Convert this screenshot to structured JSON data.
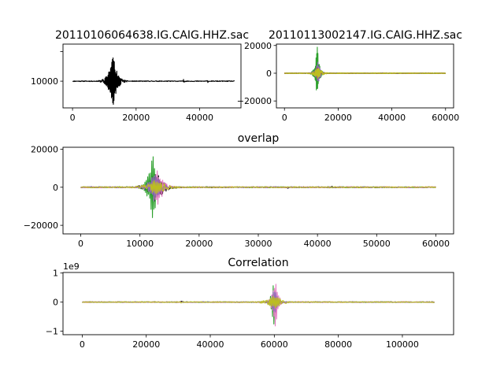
{
  "figure": {
    "background": "#ffffff"
  },
  "chart_data": [
    {
      "type": "line",
      "title": "20110106064638.IG.CAIG.HHZ.sac",
      "xlim": [
        -3000,
        53000
      ],
      "ylim": [
        -9000,
        12500
      ],
      "xticks": [
        0,
        20000,
        40000
      ],
      "yticks": [
        -10000,
        0,
        10000
      ],
      "yticks_shown": [
        0,
        10000
      ],
      "yticklabels": [
        "0",
        "10000"
      ],
      "offset_text": "",
      "grid": false,
      "series": [
        {
          "color": "#000000",
          "x_end": 51000,
          "events": [
            {
              "center": 12700,
              "amplitude": 9500,
              "width": 1200
            },
            {
              "center": 35000,
              "amplitude": 900,
              "width": 250
            },
            {
              "center": 42500,
              "amplitude": 700,
              "width": 200
            }
          ]
        }
      ]
    },
    {
      "type": "line",
      "title": "20110113002147.IG.CAIG.HHZ.sac",
      "xlim": [
        -3000,
        63000
      ],
      "ylim": [
        -25000,
        21000
      ],
      "xticks": [
        0,
        20000,
        40000,
        60000
      ],
      "yticks": [
        -20000,
        0,
        20000
      ],
      "yticklabels": [
        "−20000",
        "0",
        "20000"
      ],
      "offset_text": "",
      "grid": false,
      "series": [
        {
          "color": "#ff7f0e",
          "x_end": 60000,
          "events": [
            {
              "center": 12200,
              "amplitude": 6000,
              "width": 900
            }
          ]
        },
        {
          "color": "#2ca02c",
          "x_end": 60000,
          "events": [
            {
              "center": 12200,
              "amplitude": 21000,
              "width": 700
            }
          ]
        },
        {
          "color": "#9467bd",
          "x_end": 60000,
          "events": [
            {
              "center": 12400,
              "amplitude": 9000,
              "width": 900
            }
          ]
        },
        {
          "color": "#8c564b",
          "x_end": 60000,
          "events": [
            {
              "center": 12300,
              "amplitude": 5000,
              "width": 800
            }
          ]
        },
        {
          "color": "#bcbd22",
          "x_end": 60000,
          "events": [
            {
              "center": 12500,
              "amplitude": 4000,
              "width": 1600
            },
            {
              "center": 42000,
              "amplitude": 700,
              "width": 250
            }
          ]
        }
      ]
    },
    {
      "type": "line",
      "title": "overlap",
      "xlim": [
        -3000,
        63000
      ],
      "ylim": [
        -24500,
        21000
      ],
      "xticks": [
        0,
        10000,
        20000,
        30000,
        40000,
        50000,
        60000
      ],
      "yticks": [
        -20000,
        0,
        20000
      ],
      "yticklabels": [
        "−20000",
        "0",
        "20000"
      ],
      "offset_text": "",
      "grid": false,
      "series": [
        {
          "color": "#000000",
          "x_end": 51000,
          "events": [
            {
              "center": 12700,
              "amplitude": 9000,
              "width": 1200
            },
            {
              "center": 35000,
              "amplitude": 900,
              "width": 250
            },
            {
              "center": 42500,
              "amplitude": 700,
              "width": 200
            }
          ]
        },
        {
          "color": "#ff7f0e",
          "x_end": 60000,
          "events": [
            {
              "center": 12200,
              "amplitude": 6000,
              "width": 900
            }
          ]
        },
        {
          "color": "#2ca02c",
          "x_end": 60000,
          "events": [
            {
              "center": 12200,
              "amplitude": 20000,
              "width": 700
            }
          ]
        },
        {
          "color": "#e377c2",
          "x_end": 60000,
          "events": [
            {
              "center": 13000,
              "amplitude": 11000,
              "width": 900
            }
          ]
        },
        {
          "color": "#9467bd",
          "x_end": 60000,
          "events": [
            {
              "center": 12500,
              "amplitude": 9000,
              "width": 900
            }
          ]
        },
        {
          "color": "#bcbd22",
          "x_end": 60000,
          "events": [
            {
              "center": 12700,
              "amplitude": 4000,
              "width": 1800
            },
            {
              "center": 42000,
              "amplitude": 700,
              "width": 250
            }
          ]
        }
      ]
    },
    {
      "type": "line",
      "title": "Correlation",
      "xlim": [
        -6000,
        116000
      ],
      "ylim": [
        -1.12,
        1.02
      ],
      "xticks": [
        0,
        20000,
        40000,
        60000,
        80000,
        100000
      ],
      "yticks": [
        -1,
        0,
        1
      ],
      "yticklabels": [
        "−1",
        "0",
        "1"
      ],
      "offset_text": "1e9",
      "grid": false,
      "series": [
        {
          "color": "#000000",
          "x_end": 110000,
          "events": [
            {
              "center": 60000,
              "amplitude": 0.35,
              "width": 900
            },
            {
              "center": 31000,
              "amplitude": 0.05,
              "width": 300
            }
          ]
        },
        {
          "color": "#ff7f0e",
          "x_end": 110000,
          "events": [
            {
              "center": 60000,
              "amplitude": 0.4,
              "width": 900
            }
          ]
        },
        {
          "color": "#2ca02c",
          "x_end": 110000,
          "events": [
            {
              "center": 59800,
              "amplitude": 0.85,
              "width": 700
            }
          ]
        },
        {
          "color": "#e377c2",
          "x_end": 110000,
          "events": [
            {
              "center": 60300,
              "amplitude": 1.05,
              "width": 800
            }
          ]
        },
        {
          "color": "#9467bd",
          "x_end": 110000,
          "events": [
            {
              "center": 60100,
              "amplitude": 0.6,
              "width": 900
            }
          ]
        },
        {
          "color": "#bcbd22",
          "x_end": 110000,
          "events": [
            {
              "center": 60000,
              "amplitude": 0.25,
              "width": 2200
            },
            {
              "center": 31000,
              "amplitude": 0.05,
              "width": 300
            },
            {
              "center": 92000,
              "amplitude": 0.03,
              "width": 300
            }
          ]
        }
      ]
    }
  ]
}
